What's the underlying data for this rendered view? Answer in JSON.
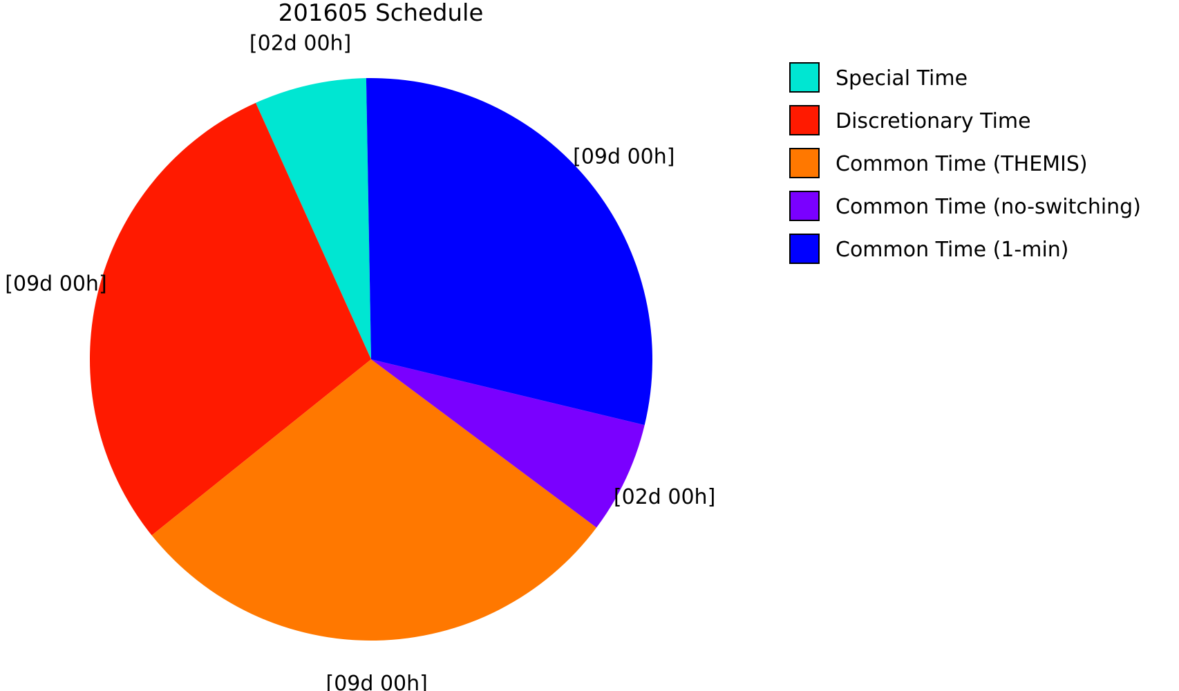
{
  "chart_data": {
    "type": "pie",
    "title": "201605 Schedule",
    "start_angle_deg": 91,
    "direction": "counterclockwise",
    "legend_position": "top-right",
    "slices": [
      {
        "name": "Special Time",
        "value": 2,
        "label": "[02d 00h]",
        "color": "#00e6d2"
      },
      {
        "name": "Discretionary Time",
        "value": 9,
        "label": "[09d 00h]",
        "color": "#ff1a00"
      },
      {
        "name": "Common Time (THEMIS)",
        "value": 9,
        "label": "[09d 00h]",
        "color": "#ff7800"
      },
      {
        "name": "Common Time (no-switching)",
        "value": 2,
        "label": "[02d 00h]",
        "color": "#7a00ff"
      },
      {
        "name": "Common Time (1-min)",
        "value": 9,
        "label": "[09d 00h]",
        "color": "#0000ff"
      }
    ]
  }
}
